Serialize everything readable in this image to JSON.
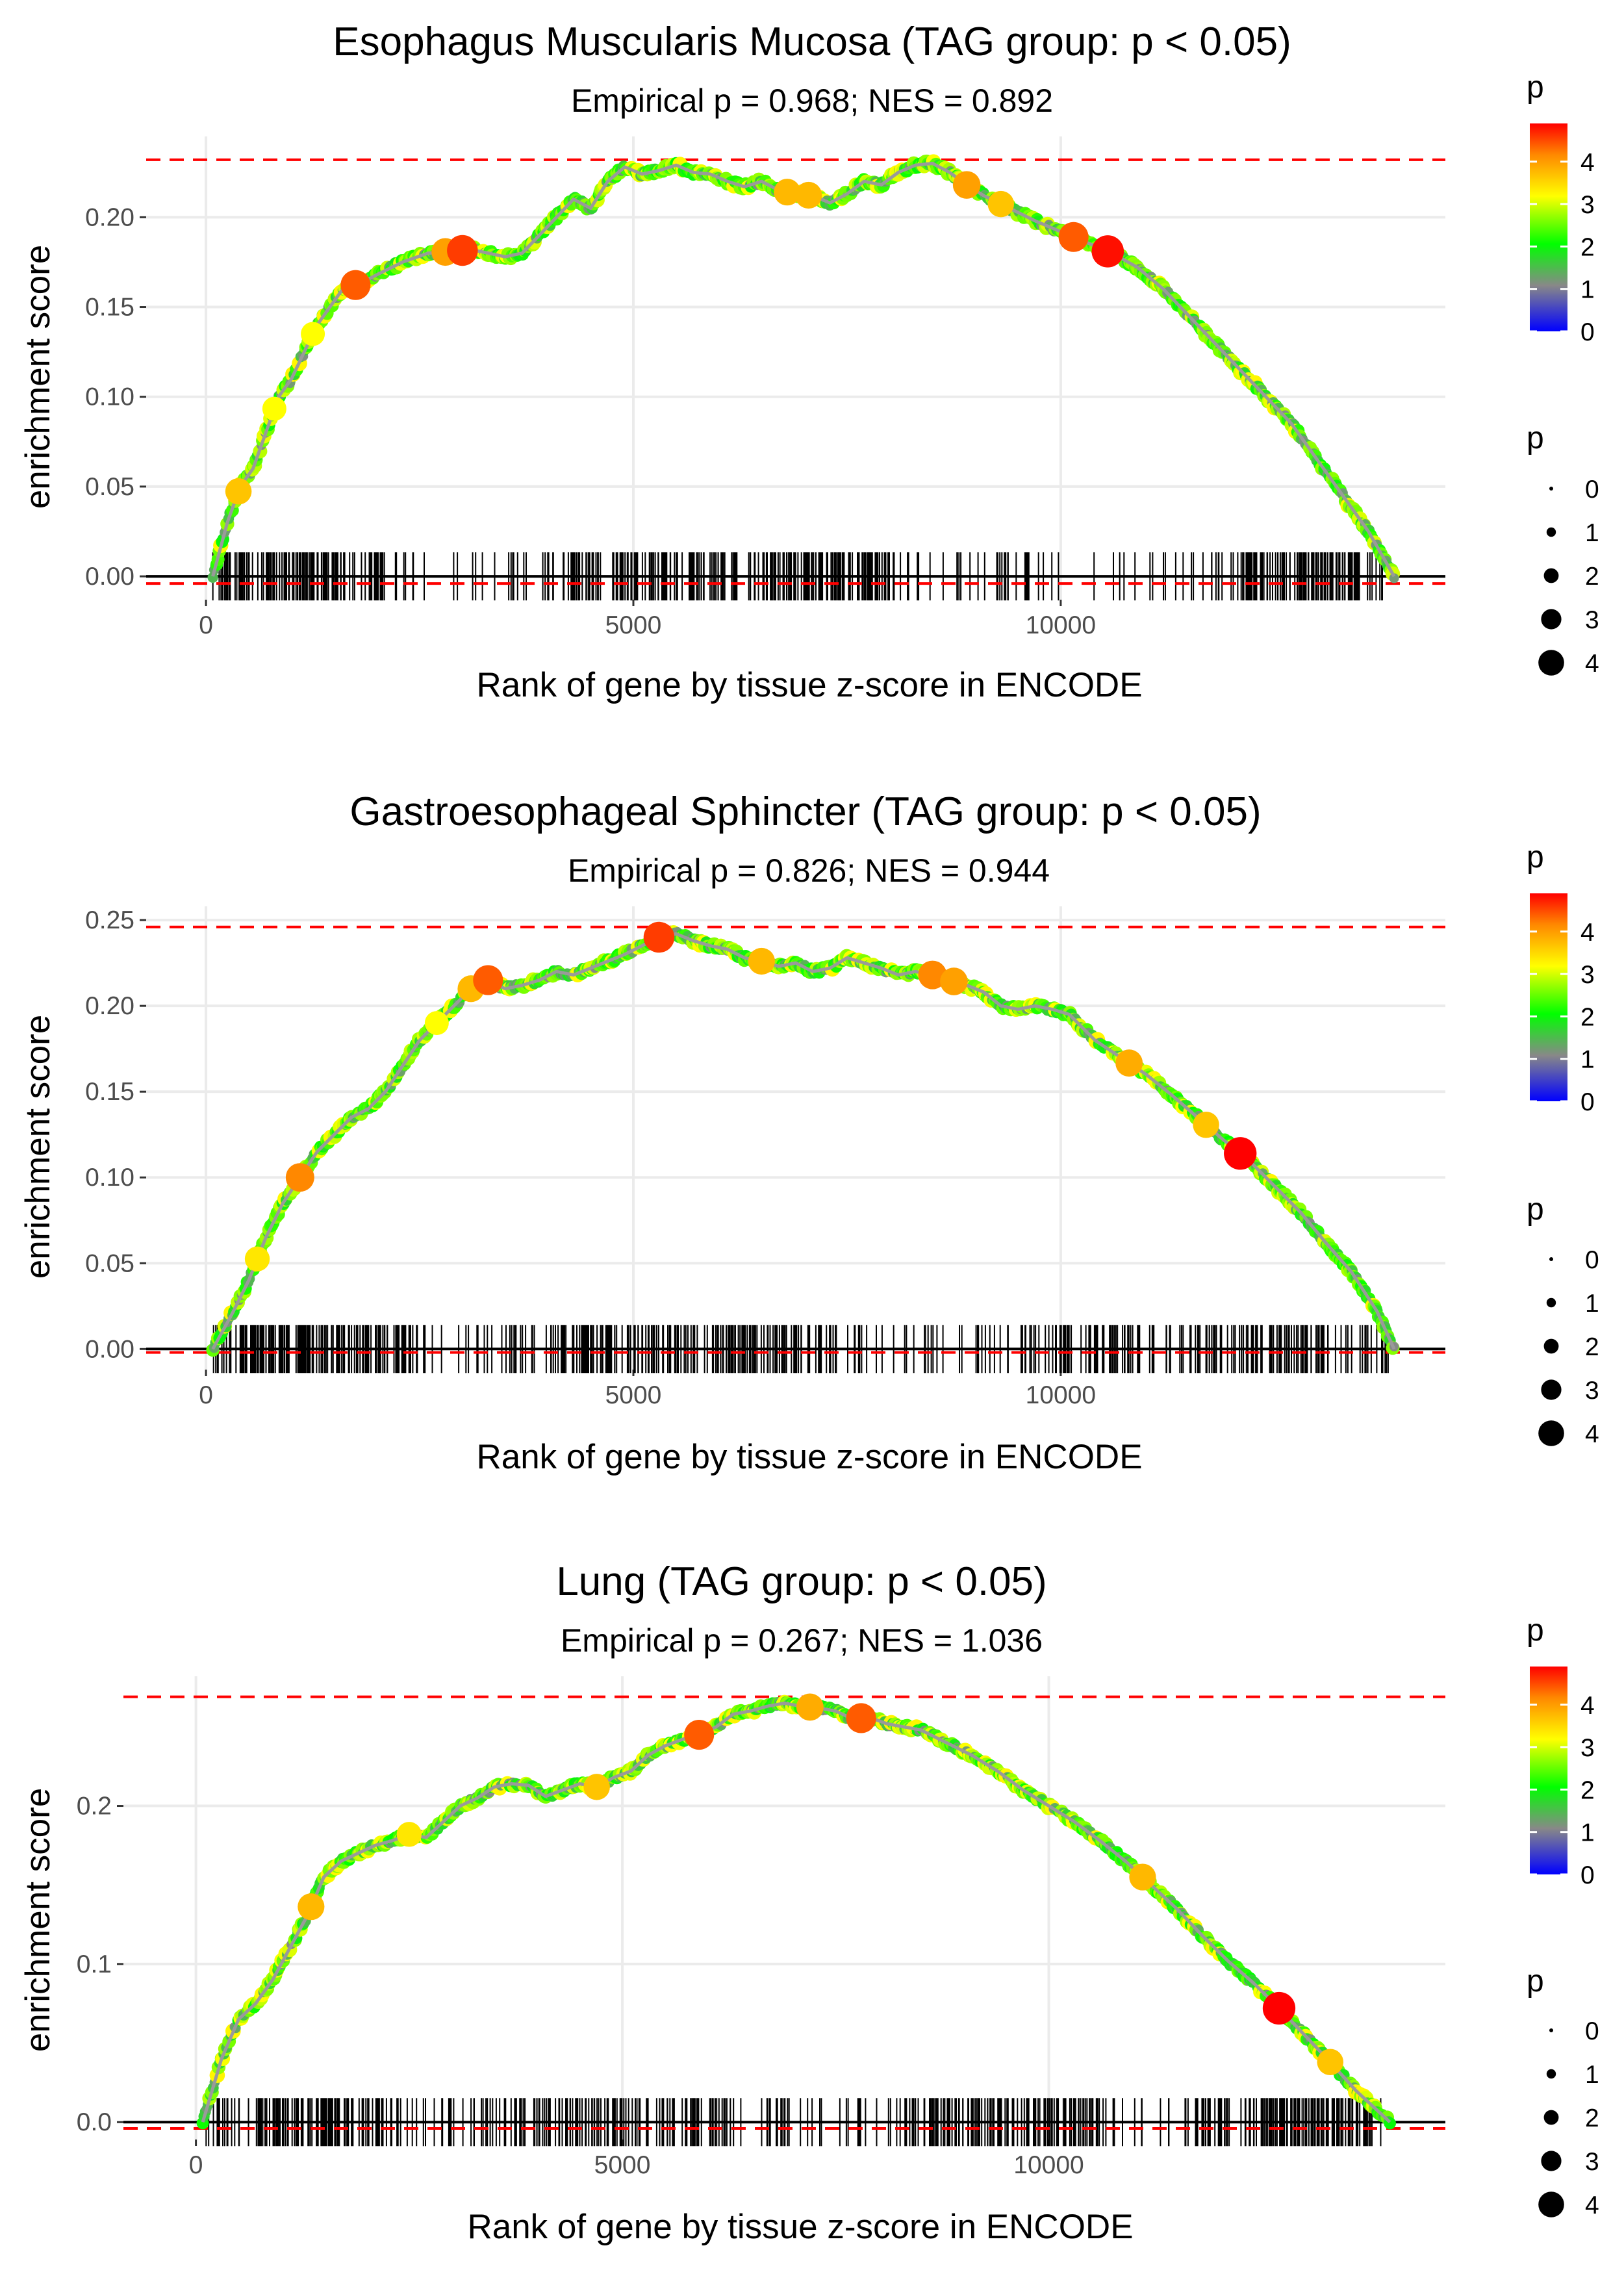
{
  "chart_data": [
    {
      "type": "line",
      "title": "Esophagus Muscularis Mucosa (TAG group: p < 0.05)",
      "subtitle": "Empirical p = 0.968; NES = 0.892",
      "xlabel": "Rank of gene by tissue z-score in ENCODE",
      "ylabel": "enrichment score",
      "xlim": [
        -700,
        14500
      ],
      "ylim": [
        -0.013,
        0.245
      ],
      "x_ticks": [
        0,
        5000,
        10000
      ],
      "x_tick_labels": [
        "0",
        "5000",
        "10000"
      ],
      "y_ticks": [
        0,
        0.05,
        0.1,
        0.15,
        0.2
      ],
      "y_tick_labels": [
        "0.00",
        "0.05",
        "0.10",
        "0.15",
        "0.20"
      ],
      "max_es_line": 0.232,
      "min_es_line": -0.004,
      "x_start": 80,
      "x_end": 13900,
      "curve": {
        "x": [
          80,
          250,
          400,
          550,
          700,
          850,
          1000,
          1150,
          1300,
          1450,
          1600,
          1800,
          2000,
          2300,
          2600,
          2900,
          3100,
          3300,
          3500,
          3700,
          3900,
          4100,
          4300,
          4500,
          4700,
          4900,
          5100,
          5300,
          5500,
          5700,
          5900,
          6100,
          6300,
          6500,
          6700,
          6900,
          7100,
          7300,
          7500,
          7700,
          7900,
          8100,
          8300,
          8500,
          8700,
          8900,
          9100,
          9400,
          9700,
          10000,
          10300,
          10600,
          10900,
          11200,
          11500,
          11800,
          12100,
          12400,
          12700,
          13000,
          13300,
          13600,
          13900
        ],
        "y": [
          0.0,
          0.03,
          0.05,
          0.06,
          0.08,
          0.1,
          0.11,
          0.125,
          0.14,
          0.15,
          0.16,
          0.163,
          0.168,
          0.175,
          0.18,
          0.181,
          0.182,
          0.18,
          0.178,
          0.18,
          0.19,
          0.2,
          0.21,
          0.205,
          0.22,
          0.228,
          0.224,
          0.226,
          0.229,
          0.225,
          0.224,
          0.22,
          0.217,
          0.22,
          0.215,
          0.213,
          0.212,
          0.208,
          0.213,
          0.22,
          0.218,
          0.225,
          0.229,
          0.23,
          0.225,
          0.218,
          0.212,
          0.205,
          0.198,
          0.192,
          0.186,
          0.18,
          0.172,
          0.16,
          0.145,
          0.13,
          0.115,
          0.1,
          0.085,
          0.065,
          0.045,
          0.025,
          0.0
        ]
      },
      "highlights": [
        {
          "x": 380,
          "p": 3.5
        },
        {
          "x": 800,
          "p": 3.0
        },
        {
          "x": 1250,
          "p": 3.0
        },
        {
          "x": 1750,
          "p": 4.3
        },
        {
          "x": 2800,
          "p": 3.8
        },
        {
          "x": 3000,
          "p": 4.5
        },
        {
          "x": 6800,
          "p": 3.6
        },
        {
          "x": 7050,
          "p": 3.6
        },
        {
          "x": 8900,
          "p": 3.8
        },
        {
          "x": 9300,
          "p": 3.5
        },
        {
          "x": 10150,
          "p": 4.3
        },
        {
          "x": 10550,
          "p": 4.8
        }
      ],
      "gene_ticks": {
        "count": 520,
        "seed": 11,
        "dense_ranges": [
          [
            100,
            2100
          ],
          [
            4200,
            6200
          ],
          [
            6400,
            8000
          ],
          [
            12100,
            13500
          ]
        ]
      }
    },
    {
      "type": "line",
      "title": "Gastroesophageal Sphincter (TAG group: p < 0.05)",
      "subtitle": "Empirical p = 0.826; NES = 0.944",
      "xlabel": "Rank of gene by tissue z-score in ENCODE",
      "ylabel": "enrichment score",
      "xlim": [
        -700,
        14500
      ],
      "ylim": [
        -0.012,
        0.258
      ],
      "x_ticks": [
        0,
        5000,
        10000
      ],
      "x_tick_labels": [
        "0",
        "5000",
        "10000"
      ],
      "y_ticks": [
        0,
        0.05,
        0.1,
        0.15,
        0.2,
        0.25
      ],
      "y_tick_labels": [
        "0.00",
        "0.05",
        "0.10",
        "0.15",
        "0.20",
        "0.25"
      ],
      "max_es_line": 0.246,
      "min_es_line": -0.002,
      "x_start": 80,
      "x_end": 13900,
      "curve": {
        "x": [
          80,
          300,
          500,
          700,
          900,
          1100,
          1300,
          1500,
          1700,
          1900,
          2100,
          2300,
          2500,
          2700,
          2900,
          3100,
          3300,
          3500,
          3700,
          3900,
          4100,
          4300,
          4500,
          4700,
          4900,
          5100,
          5300,
          5500,
          5700,
          5900,
          6100,
          6300,
          6500,
          6700,
          6900,
          7100,
          7300,
          7500,
          7700,
          7900,
          8100,
          8300,
          8500,
          8700,
          8900,
          9100,
          9300,
          9500,
          9700,
          9900,
          10100,
          10400,
          10700,
          11000,
          11300,
          11600,
          11900,
          12200,
          12500,
          12800,
          13100,
          13400,
          13700,
          13900
        ],
        "y": [
          0.0,
          0.02,
          0.04,
          0.065,
          0.085,
          0.1,
          0.115,
          0.125,
          0.135,
          0.14,
          0.15,
          0.165,
          0.18,
          0.19,
          0.2,
          0.21,
          0.215,
          0.21,
          0.212,
          0.215,
          0.22,
          0.218,
          0.222,
          0.226,
          0.23,
          0.235,
          0.24,
          0.242,
          0.238,
          0.235,
          0.233,
          0.228,
          0.226,
          0.223,
          0.225,
          0.22,
          0.222,
          0.228,
          0.225,
          0.222,
          0.218,
          0.22,
          0.218,
          0.215,
          0.212,
          0.208,
          0.2,
          0.198,
          0.2,
          0.198,
          0.195,
          0.18,
          0.17,
          0.16,
          0.148,
          0.135,
          0.122,
          0.11,
          0.095,
          0.08,
          0.062,
          0.045,
          0.022,
          0.0
        ]
      },
      "highlights": [
        {
          "x": 600,
          "p": 3.2
        },
        {
          "x": 1100,
          "p": 4.0
        },
        {
          "x": 2700,
          "p": 3.0
        },
        {
          "x": 3100,
          "p": 3.6
        },
        {
          "x": 3300,
          "p": 4.3
        },
        {
          "x": 5300,
          "p": 4.5
        },
        {
          "x": 6500,
          "p": 3.6
        },
        {
          "x": 8500,
          "p": 4.0
        },
        {
          "x": 8750,
          "p": 3.8
        },
        {
          "x": 10800,
          "p": 3.7
        },
        {
          "x": 11700,
          "p": 3.5
        },
        {
          "x": 12100,
          "p": 4.9
        }
      ],
      "gene_ticks": {
        "count": 560,
        "seed": 23,
        "dense_ranges": [
          [
            100,
            2600
          ],
          [
            4300,
            7000
          ],
          [
            9500,
            13800
          ]
        ]
      }
    },
    {
      "type": "line",
      "title": "Lung (TAG group: p < 0.05)",
      "subtitle": "Empirical p = 0.267; NES = 1.036",
      "xlabel": "Rank of gene by tissue z-score in ENCODE",
      "ylabel": "enrichment score",
      "xlim": [
        -850,
        14650
      ],
      "ylim": [
        -0.011,
        0.282
      ],
      "x_ticks": [
        0,
        5000,
        10000
      ],
      "x_tick_labels": [
        "0",
        "5000",
        "10000"
      ],
      "y_ticks": [
        0,
        0.1,
        0.2
      ],
      "y_tick_labels": [
        "0.0",
        "0.1",
        "0.2"
      ],
      "max_es_line": 0.269,
      "min_es_line": -0.004,
      "x_start": 80,
      "x_end": 14000,
      "curve": {
        "x": [
          80,
          300,
          500,
          700,
          900,
          1100,
          1300,
          1500,
          1700,
          1900,
          2100,
          2300,
          2500,
          2700,
          2900,
          3100,
          3300,
          3500,
          3700,
          3900,
          4100,
          4300,
          4500,
          4700,
          4900,
          5100,
          5300,
          5500,
          5700,
          5900,
          6100,
          6300,
          6500,
          6700,
          6900,
          7100,
          7300,
          7500,
          7700,
          7900,
          8100,
          8300,
          8500,
          8800,
          9100,
          9400,
          9700,
          10000,
          10300,
          10600,
          10900,
          11200,
          11500,
          11800,
          12100,
          12400,
          12700,
          13000,
          13300,
          13600,
          14000
        ],
        "y": [
          0.0,
          0.04,
          0.065,
          0.075,
          0.09,
          0.11,
          0.13,
          0.155,
          0.165,
          0.17,
          0.175,
          0.178,
          0.182,
          0.18,
          0.19,
          0.2,
          0.205,
          0.212,
          0.214,
          0.213,
          0.206,
          0.21,
          0.214,
          0.212,
          0.218,
          0.222,
          0.232,
          0.238,
          0.242,
          0.245,
          0.25,
          0.258,
          0.26,
          0.263,
          0.265,
          0.263,
          0.262,
          0.26,
          0.255,
          0.256,
          0.252,
          0.25,
          0.248,
          0.24,
          0.232,
          0.222,
          0.21,
          0.2,
          0.19,
          0.178,
          0.165,
          0.15,
          0.135,
          0.118,
          0.102,
          0.088,
          0.072,
          0.055,
          0.038,
          0.02,
          0.0
        ]
      },
      "highlights": [
        {
          "x": 1350,
          "p": 3.6
        },
        {
          "x": 2500,
          "p": 3.2
        },
        {
          "x": 4700,
          "p": 3.5
        },
        {
          "x": 5900,
          "p": 4.3
        },
        {
          "x": 7200,
          "p": 3.7
        },
        {
          "x": 7800,
          "p": 4.3
        },
        {
          "x": 11100,
          "p": 3.6
        },
        {
          "x": 12700,
          "p": 4.9
        },
        {
          "x": 13300,
          "p": 3.5
        }
      ],
      "gene_ticks": {
        "count": 580,
        "seed": 37,
        "dense_ranges": [
          [
            100,
            2300
          ],
          [
            3600,
            6300
          ],
          [
            8300,
            10700
          ],
          [
            11800,
            13800
          ]
        ]
      }
    }
  ],
  "legends": {
    "color_title": "p",
    "color_labels": [
      "0",
      "1",
      "2",
      "3",
      "4"
    ],
    "size_title": "p",
    "size_labels": [
      "0",
      "1",
      "2",
      "3",
      "4"
    ],
    "colors": {
      "c0": "#0000ff",
      "c1": "#888888",
      "c2": "#00ff00",
      "c3": "#ffff00",
      "c4": "#ff8800",
      "c5": "#ff0000"
    }
  }
}
